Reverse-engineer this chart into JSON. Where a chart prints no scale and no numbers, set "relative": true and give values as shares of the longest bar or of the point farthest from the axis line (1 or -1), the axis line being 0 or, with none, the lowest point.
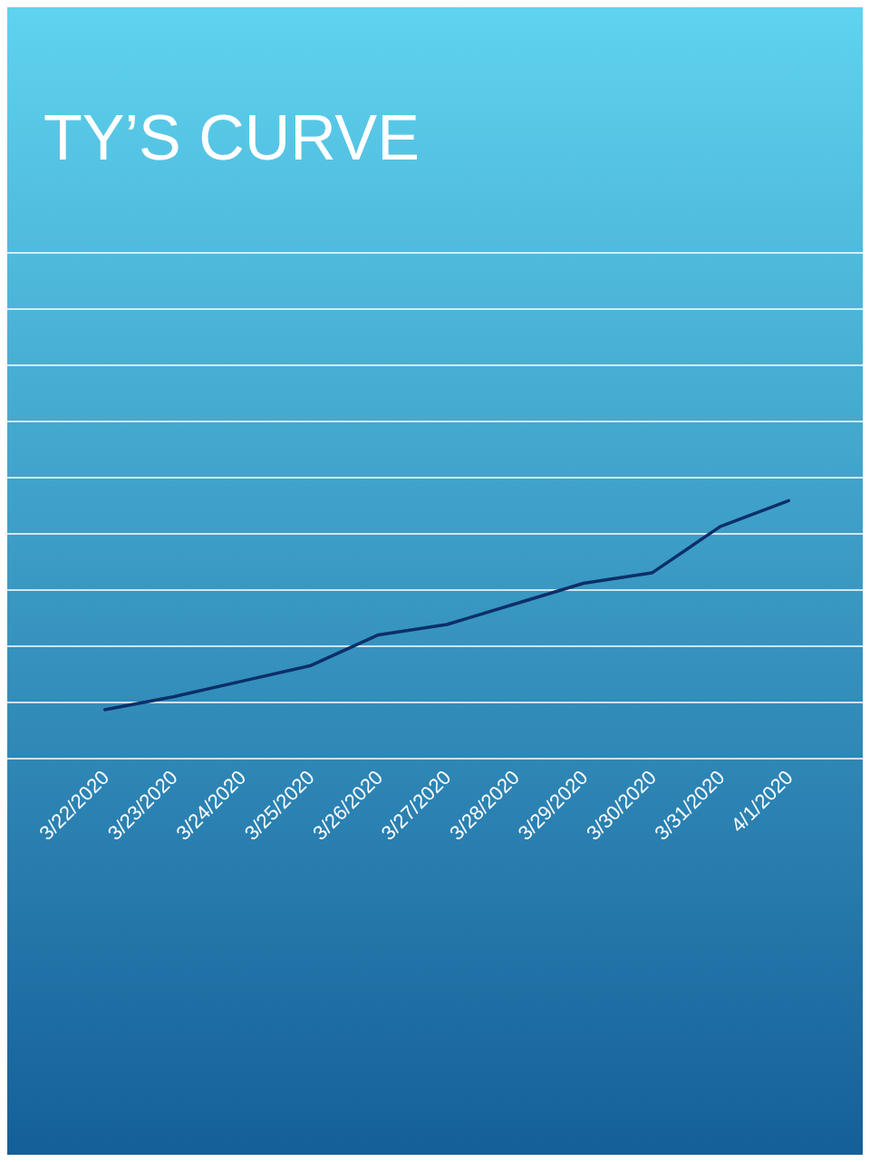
{
  "chart_data": {
    "type": "line",
    "title": "TY’S CURVE",
    "relative": true,
    "grid": true,
    "categories": [
      "3/22/2020",
      "3/23/2020",
      "3/24/2020",
      "3/25/2020",
      "3/26/2020",
      "3/27/2020",
      "3/28/2020",
      "3/29/2020",
      "3/30/2020",
      "3/31/2020",
      "4/1/2020"
    ],
    "series": [
      {
        "color": "#0c2f68",
        "values": [
          0.19,
          0.24,
          0.3,
          0.36,
          0.48,
          0.52,
          0.6,
          0.68,
          0.72,
          0.9,
          1
        ]
      }
    ],
    "marker": "none",
    "line_style": "solid"
  }
}
